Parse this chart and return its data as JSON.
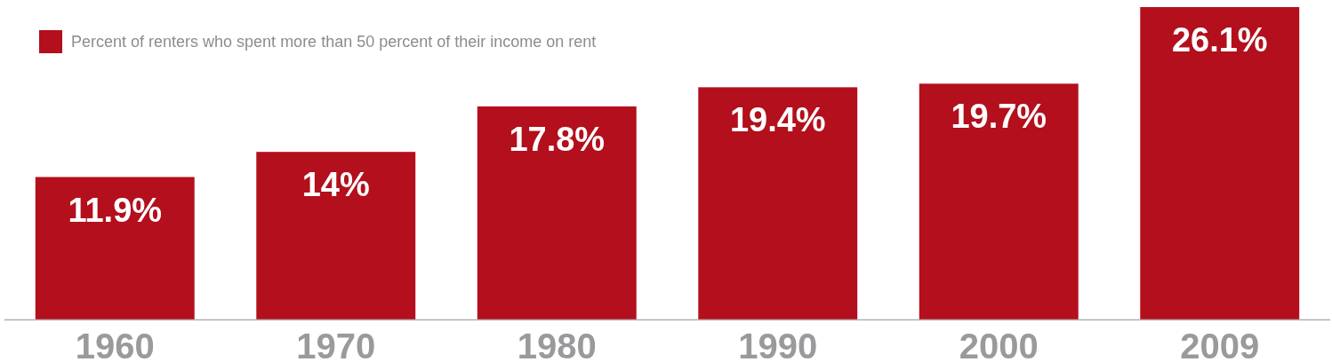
{
  "chart_data": {
    "type": "bar",
    "categories": [
      "1960",
      "1970",
      "1980",
      "1990",
      "2000",
      "2009"
    ],
    "series": [
      {
        "name": "Percent of renters who spent more than 50 percent of their income on rent",
        "color": "#b30f1c",
        "values": [
          11.9,
          14,
          17.8,
          19.4,
          19.7,
          26.1
        ],
        "value_labels": [
          "11.9%",
          "14%",
          "17.8%",
          "19.4%",
          "19.7%",
          "26.1%"
        ]
      }
    ],
    "legend": "top left"
  }
}
